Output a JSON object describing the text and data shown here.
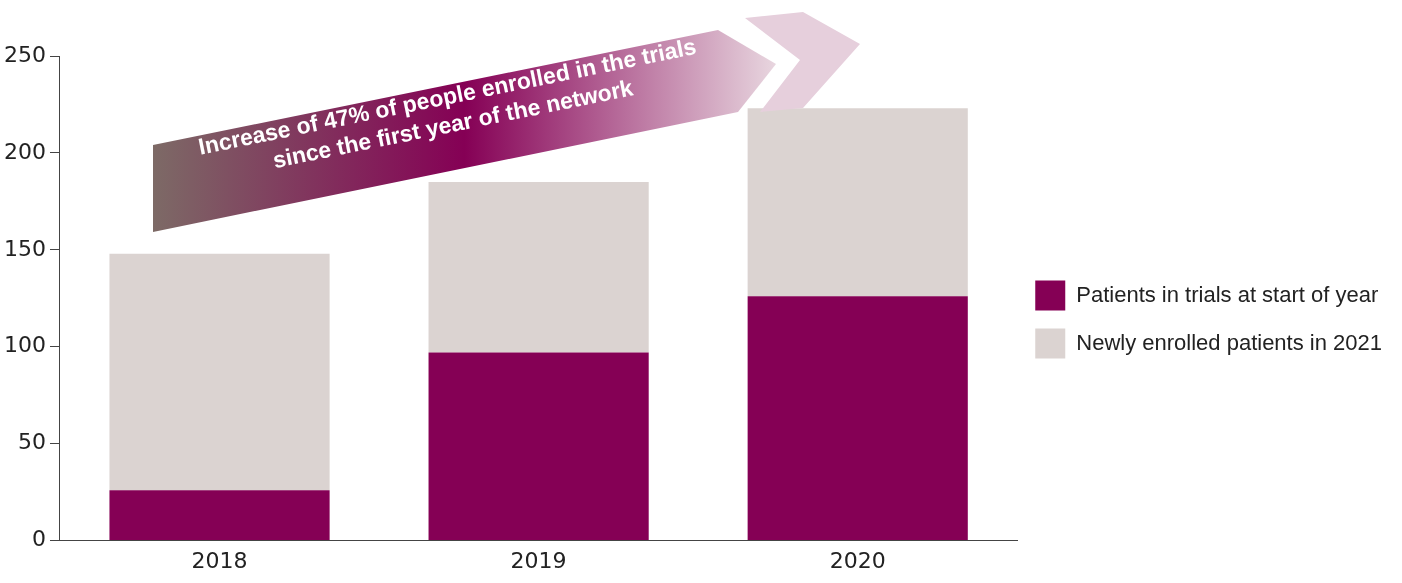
{
  "chart_data": {
    "type": "bar",
    "stacked": true,
    "categories": [
      "2018",
      "2019",
      "2020"
    ],
    "series": [
      {
        "name": "Patients in trials at start of year",
        "color": "#850055",
        "values": [
          26,
          97,
          126
        ]
      },
      {
        "name": "Newly enrolled patients in 2021",
        "color": "#dbd3d1",
        "values": [
          122,
          88,
          97
        ]
      }
    ],
    "ylim": [
      0,
      250
    ],
    "yticks": [
      0,
      50,
      100,
      150,
      200,
      250
    ],
    "grid": false,
    "legend": "right",
    "annotations": [
      "Increase of 47% of people enrolled in the trials since the first year of the network"
    ]
  }
}
